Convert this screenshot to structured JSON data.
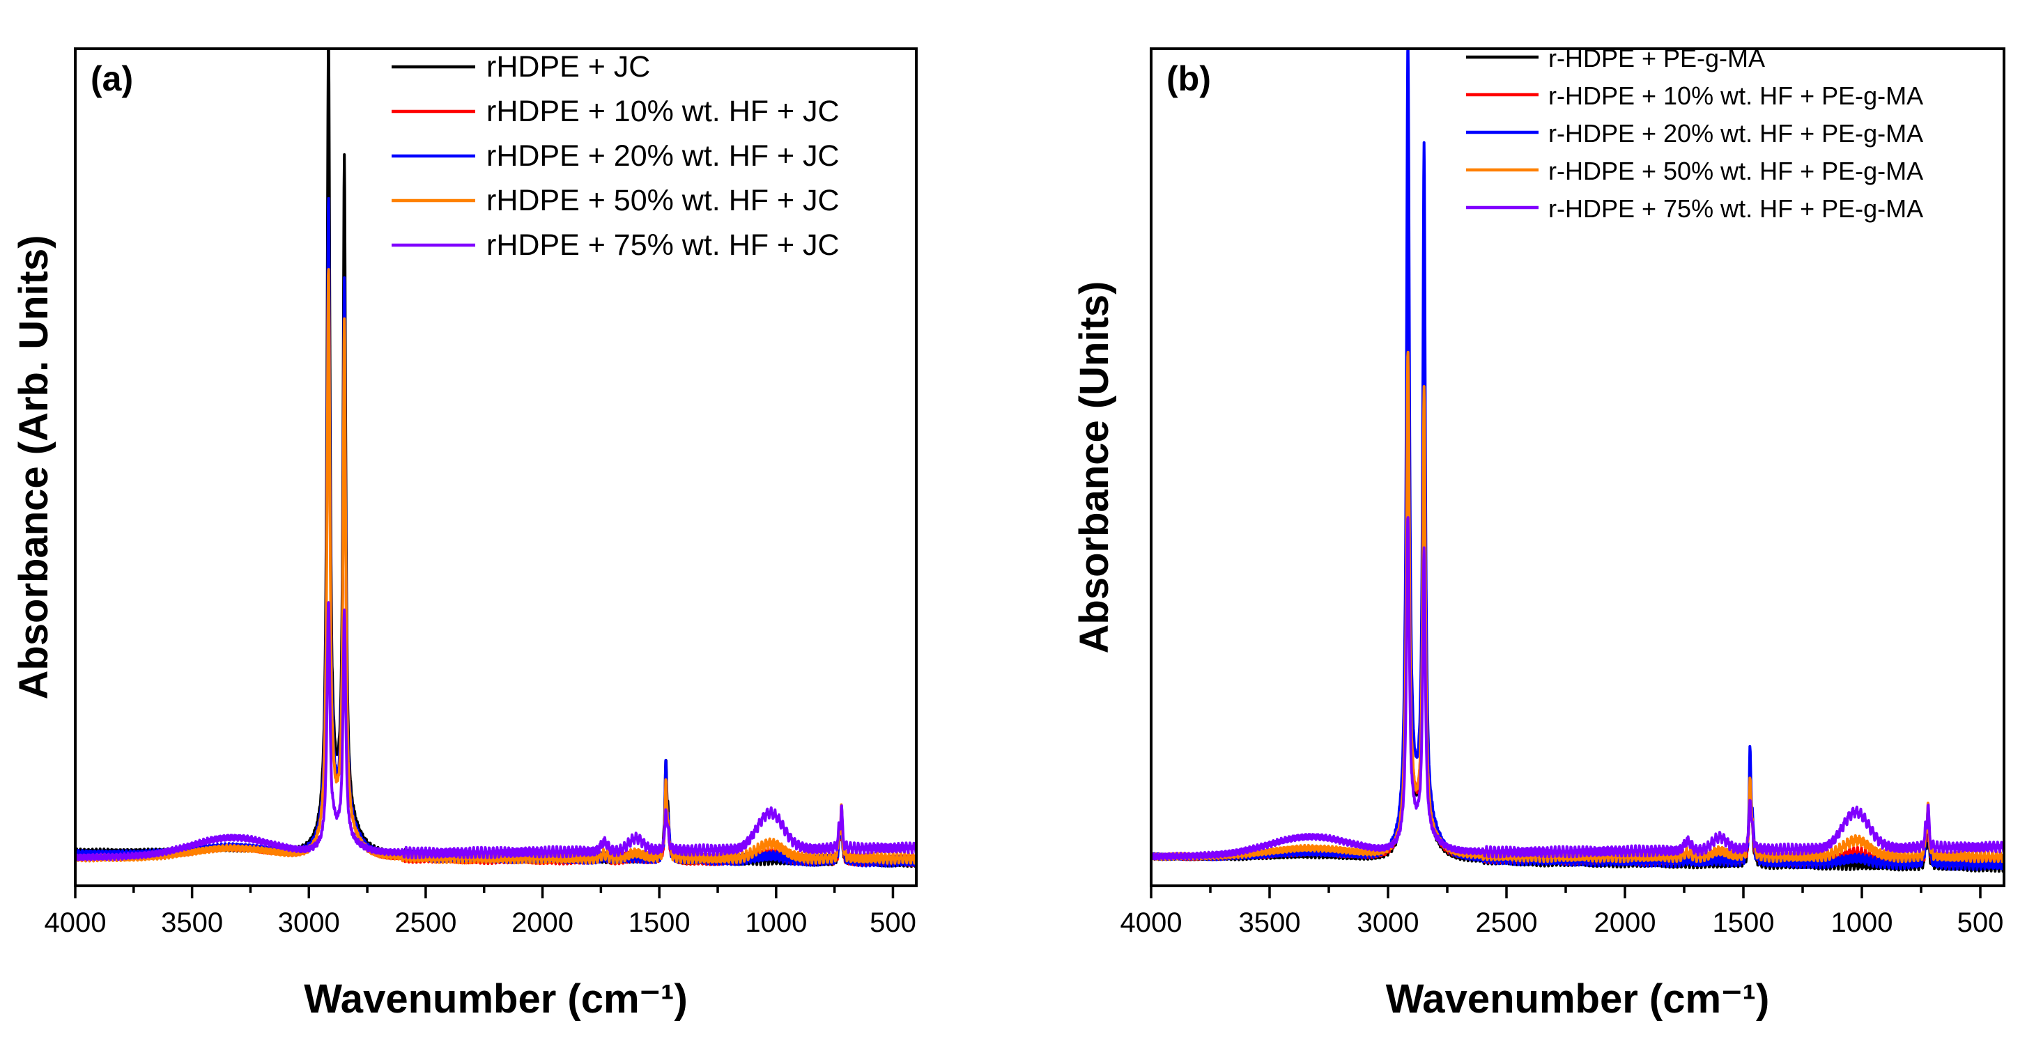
{
  "chart_data": [
    {
      "type": "line",
      "panel_label": "(a)",
      "xlabel": "Wavenumber (cm⁻¹)",
      "ylabel": "Absorbance (Arb. Units)",
      "xlim": [
        4000,
        400
      ],
      "x_reversed": true,
      "ylim": [
        -0.03,
        1.0
      ],
      "y_ticks_labeled": false,
      "x_ticks": [
        4000,
        3500,
        3000,
        2500,
        2000,
        1500,
        1000,
        500
      ],
      "grid": false,
      "legend_position": "top-right",
      "series": [
        {
          "name": "rHDPE + JC",
          "color": "#000000",
          "baseline": 0.012,
          "tail": -0.012,
          "broad_oh": 0.006,
          "peak_2916": 0.97,
          "peak_2848": 0.8,
          "peak_1472": 0.12,
          "peak_1015": 0.0,
          "peak_720": 0.06
        },
        {
          "name": "rHDPE + 10% wt. HF + JC",
          "color": "#ff0000",
          "baseline": 0.006,
          "tail": -0.005,
          "broad_oh": 0.012,
          "peak_2916": 0.76,
          "peak_2848": 0.63,
          "peak_1472": 0.1,
          "peak_1015": 0.01,
          "peak_720": 0.05
        },
        {
          "name": "rHDPE + 20% wt. HF + JC",
          "color": "#0000ff",
          "baseline": 0.01,
          "tail": -0.01,
          "broad_oh": 0.01,
          "peak_2916": 0.78,
          "peak_2848": 0.66,
          "peak_1472": 0.11,
          "peak_1015": 0.005,
          "peak_720": 0.05
        },
        {
          "name": "rHDPE + 50% wt. HF + JC",
          "color": "#ff8000",
          "baseline": 0.004,
          "tail": 0.0,
          "broad_oh": 0.012,
          "peak_2916": 0.7,
          "peak_2848": 0.62,
          "peak_1472": 0.09,
          "peak_1015": 0.018,
          "peak_720": 0.06
        },
        {
          "name": "rHDPE + 75% wt. HF + JC",
          "color": "#8000ff",
          "baseline": 0.005,
          "tail": 0.012,
          "broad_oh": 0.022,
          "peak_2916": 0.3,
          "peak_2848": 0.28,
          "peak_1472": 0.05,
          "peak_1015": 0.045,
          "peak_720": 0.05
        }
      ]
    },
    {
      "type": "line",
      "panel_label": "(b)",
      "xlabel": "Wavenumber (cm⁻¹)",
      "ylabel": "Absorbance (Units)",
      "xlim": [
        4000,
        400
      ],
      "x_reversed": true,
      "ylim": [
        -0.03,
        1.0
      ],
      "y_ticks_labeled": false,
      "x_ticks": [
        4000,
        3500,
        3000,
        2500,
        2000,
        1500,
        1000,
        500
      ],
      "grid": false,
      "legend_position": "top-right",
      "series": [
        {
          "name": "r-HDPE + PE-g-MA",
          "color": "#000000",
          "baseline": 0.006,
          "tail": -0.012,
          "broad_oh": 0.004,
          "peak_2916": 0.6,
          "peak_2848": 0.5,
          "peak_1472": 0.1,
          "peak_1015": 0.0,
          "peak_720": 0.05
        },
        {
          "name": "r-HDPE + 10% wt. HF + PE-g-MA",
          "color": "#ff0000",
          "baseline": 0.006,
          "tail": -0.006,
          "broad_oh": 0.006,
          "peak_2916": 0.62,
          "peak_2848": 0.52,
          "peak_1472": 0.1,
          "peak_1015": 0.01,
          "peak_720": 0.05
        },
        {
          "name": "r-HDPE + 20% wt. HF + PE-g-MA",
          "color": "#0000ff",
          "baseline": 0.006,
          "tail": -0.01,
          "broad_oh": 0.006,
          "peak_2916": 0.97,
          "peak_2848": 0.82,
          "peak_1472": 0.13,
          "peak_1015": 0.006,
          "peak_720": 0.07
        },
        {
          "name": "r-HDPE + 50% wt. HF + PE-g-MA",
          "color": "#ff8000",
          "baseline": 0.006,
          "tail": 0.0,
          "broad_oh": 0.01,
          "peak_2916": 0.6,
          "peak_2848": 0.54,
          "peak_1472": 0.09,
          "peak_1015": 0.02,
          "peak_720": 0.06
        },
        {
          "name": "r-HDPE + 75% wt. HF + PE-g-MA",
          "color": "#8000ff",
          "baseline": 0.006,
          "tail": 0.012,
          "broad_oh": 0.022,
          "peak_2916": 0.4,
          "peak_2848": 0.35,
          "peak_1472": 0.06,
          "peak_1015": 0.045,
          "peak_720": 0.05
        }
      ]
    }
  ]
}
